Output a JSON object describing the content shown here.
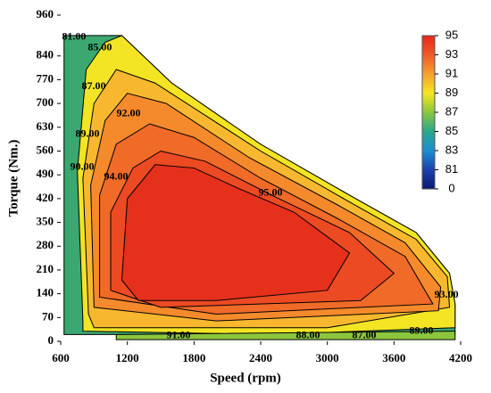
{
  "chart_data": {
    "type": "contour",
    "xlabel": "Speed (rpm)",
    "ylabel": "Torque (Nm.)",
    "xlim": [
      600,
      4200
    ],
    "xticks": [
      600,
      1200,
      1800,
      2400,
      3000,
      3600,
      4200
    ],
    "ylim": [
      0,
      960
    ],
    "yticks": [
      0,
      70,
      140,
      210,
      280,
      350,
      420,
      490,
      560,
      630,
      700,
      770,
      840,
      960
    ],
    "contours": [
      {
        "level": 85,
        "color": "#3aa870",
        "x": [
          630,
          630,
          1150,
          1600,
          2400,
          3200,
          3800,
          4100,
          4150,
          4150
        ],
        "y": [
          20,
          900,
          900,
          760,
          580,
          430,
          320,
          200,
          110,
          20
        ]
      },
      {
        "level": 89,
        "color": "#f3e424",
        "x": [
          800,
          750,
          830,
          1000,
          1150,
          1600,
          2400,
          3200,
          3800,
          4100,
          4150,
          4150,
          2500,
          800
        ],
        "y": [
          60,
          500,
          800,
          880,
          900,
          760,
          580,
          430,
          320,
          200,
          110,
          40,
          20,
          30
        ]
      },
      {
        "level": 91,
        "color": "#f7b830",
        "x": [
          850,
          800,
          900,
          1100,
          1450,
          2400,
          3200,
          3800,
          4080,
          4100,
          3000,
          900
        ],
        "y": [
          80,
          480,
          700,
          800,
          760,
          560,
          410,
          300,
          190,
          100,
          40,
          40
        ]
      },
      {
        "level": 92,
        "color": "#f58a2c",
        "x": [
          900,
          870,
          1000,
          1200,
          1550,
          2300,
          3100,
          3700,
          4020,
          4000,
          2000
        ],
        "y": [
          100,
          460,
          650,
          730,
          700,
          540,
          400,
          290,
          160,
          90,
          60
        ]
      },
      {
        "level": 93,
        "color": "#f06a28",
        "x": [
          950,
          950,
          1100,
          1400,
          1800,
          2400,
          3100,
          3700,
          3950,
          2000
        ],
        "y": [
          130,
          430,
          580,
          640,
          600,
          480,
          360,
          250,
          110,
          80
        ]
      },
      {
        "level": 94,
        "color": "#ec4a22",
        "x": [
          1050,
          1050,
          1250,
          1500,
          1900,
          2500,
          3200,
          3600,
          3300,
          1500
        ],
        "y": [
          150,
          380,
          510,
          560,
          530,
          430,
          320,
          200,
          120,
          100
        ]
      },
      {
        "level": 95,
        "color": "#e5301c",
        "x": [
          1150,
          1200,
          1450,
          1800,
          2200,
          2700,
          3200,
          3000,
          2000,
          1300
        ],
        "y": [
          180,
          420,
          520,
          510,
          450,
          380,
          260,
          150,
          120,
          120
        ]
      },
      {
        "level": 88,
        "color": "#8cc63e",
        "x": [
          1100,
          4150,
          4150,
          1100
        ],
        "y": [
          5,
          5,
          30,
          20
        ]
      }
    ],
    "contour_labels": [
      {
        "label": "81.00",
        "x": 720,
        "y": 895
      },
      {
        "label": "85.00",
        "x": 953,
        "y": 863
      },
      {
        "label": "87.00",
        "x": 897,
        "y": 750
      },
      {
        "label": "92.00",
        "x": 1211,
        "y": 669
      },
      {
        "label": "89.00",
        "x": 841,
        "y": 609
      },
      {
        "label": "90.00",
        "x": 793,
        "y": 512
      },
      {
        "label": "94.00",
        "x": 1098,
        "y": 483
      },
      {
        "label": "95.00",
        "x": 2488,
        "y": 436
      },
      {
        "label": "93.00",
        "x": 4072,
        "y": 136
      },
      {
        "label": "91.00",
        "x": 1661,
        "y": 16
      },
      {
        "label": "88.00",
        "x": 2826,
        "y": 16
      },
      {
        "label": "87.00",
        "x": 3332,
        "y": 16
      },
      {
        "label": "89.00",
        "x": 3846,
        "y": 29
      }
    ],
    "colorbar": {
      "ticks": [
        95,
        93,
        91,
        89,
        87,
        85,
        83,
        81,
        0
      ],
      "colors": [
        "#e8261c",
        "#f05a28",
        "#f7a030",
        "#f5e620",
        "#8cc63e",
        "#2aa88a",
        "#1b8fd0",
        "#1d3fb0",
        "#0a1a70"
      ]
    }
  }
}
